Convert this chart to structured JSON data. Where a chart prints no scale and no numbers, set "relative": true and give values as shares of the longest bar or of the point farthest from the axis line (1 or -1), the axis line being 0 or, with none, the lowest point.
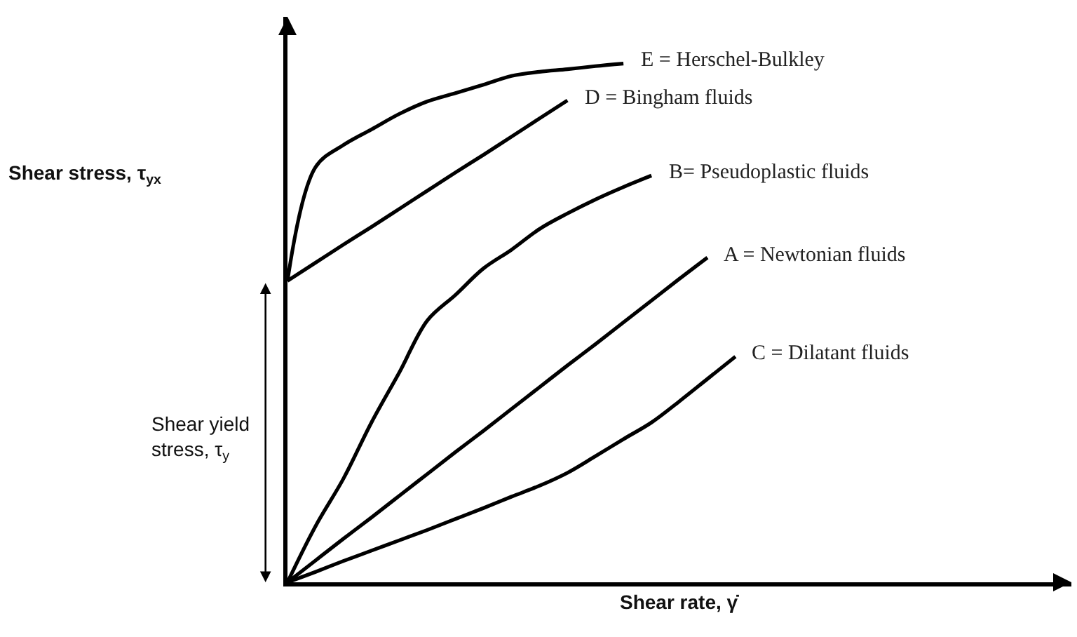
{
  "chart_data": {
    "type": "line",
    "relative": true,
    "xlabel": "Shear rate, γ̇",
    "categories": [
      null,
      null,
      null,
      null,
      null,
      null,
      null,
      null,
      null,
      null,
      null,
      null,
      null,
      null,
      null,
      null,
      null
    ],
    "series": [
      {
        "name": "E = Herschel-Bulkley",
        "color": "#000000",
        "values": [
          0.581,
          0.8,
          0.843,
          0.873,
          0.903,
          0.927,
          0.943,
          0.959,
          0.976,
          0.984,
          0.989,
          0.995,
          1.0,
          null,
          null,
          null,
          null
        ]
      },
      {
        "name": "D = Bingham fluids",
        "color": "#000000",
        "values": [
          0.581,
          0.616,
          0.651,
          0.685,
          0.72,
          0.755,
          0.79,
          0.824,
          0.859,
          0.894,
          0.929,
          null,
          null,
          null,
          null,
          null,
          null
        ]
      },
      {
        "name": "B= Pseudoplastic fluids",
        "color": "#000000",
        "values": [
          0,
          0.108,
          0.2,
          0.308,
          0.405,
          0.505,
          0.554,
          0.605,
          0.641,
          0.681,
          0.711,
          0.738,
          0.762,
          0.784,
          null,
          null,
          null
        ]
      },
      {
        "name": "A = Newtonian fluids",
        "color": "#000000",
        "values": [
          0,
          0.042,
          0.084,
          0.125,
          0.167,
          0.209,
          0.251,
          0.292,
          0.334,
          0.376,
          0.418,
          0.459,
          0.501,
          0.543,
          0.585,
          0.626,
          null
        ]
      },
      {
        "name": "C = Dilatant fluids",
        "color": "#000000",
        "values": [
          0,
          0.02,
          0.041,
          0.061,
          0.081,
          0.101,
          0.122,
          0.143,
          0.165,
          0.186,
          0.211,
          0.243,
          0.276,
          0.308,
          0.349,
          0.392,
          0.435
        ]
      }
    ],
    "annotations": [
      "Shear stress, τ$_{yx}$",
      "Shear yield\nstress, τ$_{y}$"
    ],
    "legend": false,
    "marker": "none",
    "line_style": "solid"
  }
}
